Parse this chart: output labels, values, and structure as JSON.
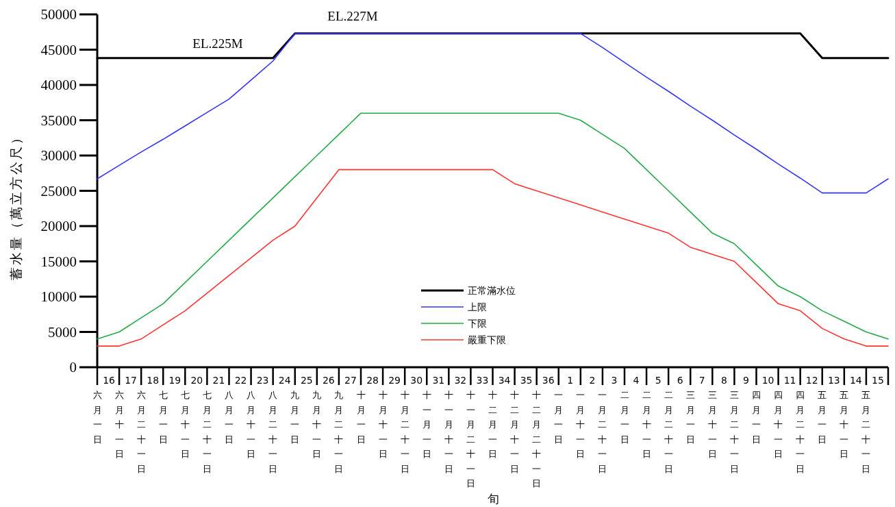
{
  "chart_data": {
    "type": "line",
    "ylabel": "蓄水量（萬立方公尺）",
    "xlabel": "旬",
    "categories": [
      "16\n六月一日",
      "17\n六月十一日",
      "18\n六月二十一日",
      "19\n七月一日",
      "20\n七月十一日",
      "21\n七月二十一日",
      "22\n八月一日",
      "23\n八月十一日",
      "24\n八月二十一日",
      "25\n九月一日",
      "26\n九月十一日",
      "27\n九月二十一日",
      "28\n十月一日",
      "29\n十月十一日",
      "30\n十月二十一日",
      "31\n十一月一日",
      "32\n十一月十一日",
      "33\n十一月二十一日",
      "34\n十二月一日",
      "35\n十二月十一日",
      "36\n十二月二十一日",
      "1\n一月一日",
      "2\n一月十一日",
      "3\n一月二十一日",
      "4\n二月一日",
      "5\n二月十一日",
      "6\n二月二十一日",
      "7\n三月一日",
      "8\n三月十一日",
      "9\n三月二十一日",
      "10\n四月一日",
      "11\n四月十一日",
      "12\n四月二十一日",
      "13\n五月一日",
      "14\n五月十一日",
      "15\n五月二十一日",
      null
    ],
    "series": [
      {
        "name": "正常滿水位",
        "color": "#000000",
        "values": [
          43800,
          43800,
          43800,
          43800,
          43800,
          43800,
          43800,
          43800,
          43800,
          47300,
          47300,
          47300,
          47300,
          47300,
          47300,
          47300,
          47300,
          47300,
          47300,
          47300,
          47300,
          47300,
          47300,
          47300,
          47300,
          47300,
          47300,
          47300,
          47300,
          47300,
          47300,
          47300,
          47300,
          43800,
          43800,
          43800,
          43800
        ]
      },
      {
        "name": "上限",
        "color": "#3333ff",
        "values": [
          26700,
          28600,
          30500,
          32300,
          34200,
          36100,
          38000,
          40700,
          43400,
          47300,
          47300,
          47300,
          47300,
          47300,
          47300,
          47300,
          47300,
          47300,
          47300,
          47300,
          47300,
          47300,
          47300,
          45300,
          43200,
          41100,
          39100,
          37000,
          35000,
          32900,
          30900,
          28800,
          26800,
          24700,
          24700,
          24700,
          26700
        ]
      },
      {
        "name": "下限",
        "color": "#22aa44",
        "values": [
          4000,
          5000,
          7000,
          9000,
          12000,
          15000,
          18000,
          21000,
          24000,
          27000,
          30000,
          33000,
          36000,
          36000,
          36000,
          36000,
          36000,
          36000,
          36000,
          36000,
          36000,
          36000,
          35000,
          33000,
          31000,
          28000,
          25000,
          22000,
          19000,
          17500,
          14500,
          11500,
          10000,
          8000,
          6500,
          5000,
          4000
        ]
      },
      {
        "name": "嚴重下限",
        "color": "#ff3333",
        "values": [
          3000,
          3000,
          4000,
          6000,
          8000,
          10500,
          13000,
          15500,
          18000,
          20000,
          24000,
          28000,
          28000,
          28000,
          28000,
          28000,
          28000,
          28000,
          28000,
          26000,
          25000,
          24000,
          23000,
          22000,
          21000,
          20000,
          19000,
          17000,
          16000,
          15000,
          12000,
          9000,
          8000,
          5500,
          4000,
          3000,
          3000
        ]
      }
    ],
    "ylim": [
      0,
      50000
    ],
    "yticks": [
      0,
      5000,
      10000,
      15000,
      20000,
      25000,
      30000,
      35000,
      40000,
      45000,
      50000
    ],
    "annotations": [
      "EL.225M",
      "EL.227M"
    ],
    "legend": "bottom",
    "grid": false,
    "marker": "none",
    "line_style": "solid"
  }
}
